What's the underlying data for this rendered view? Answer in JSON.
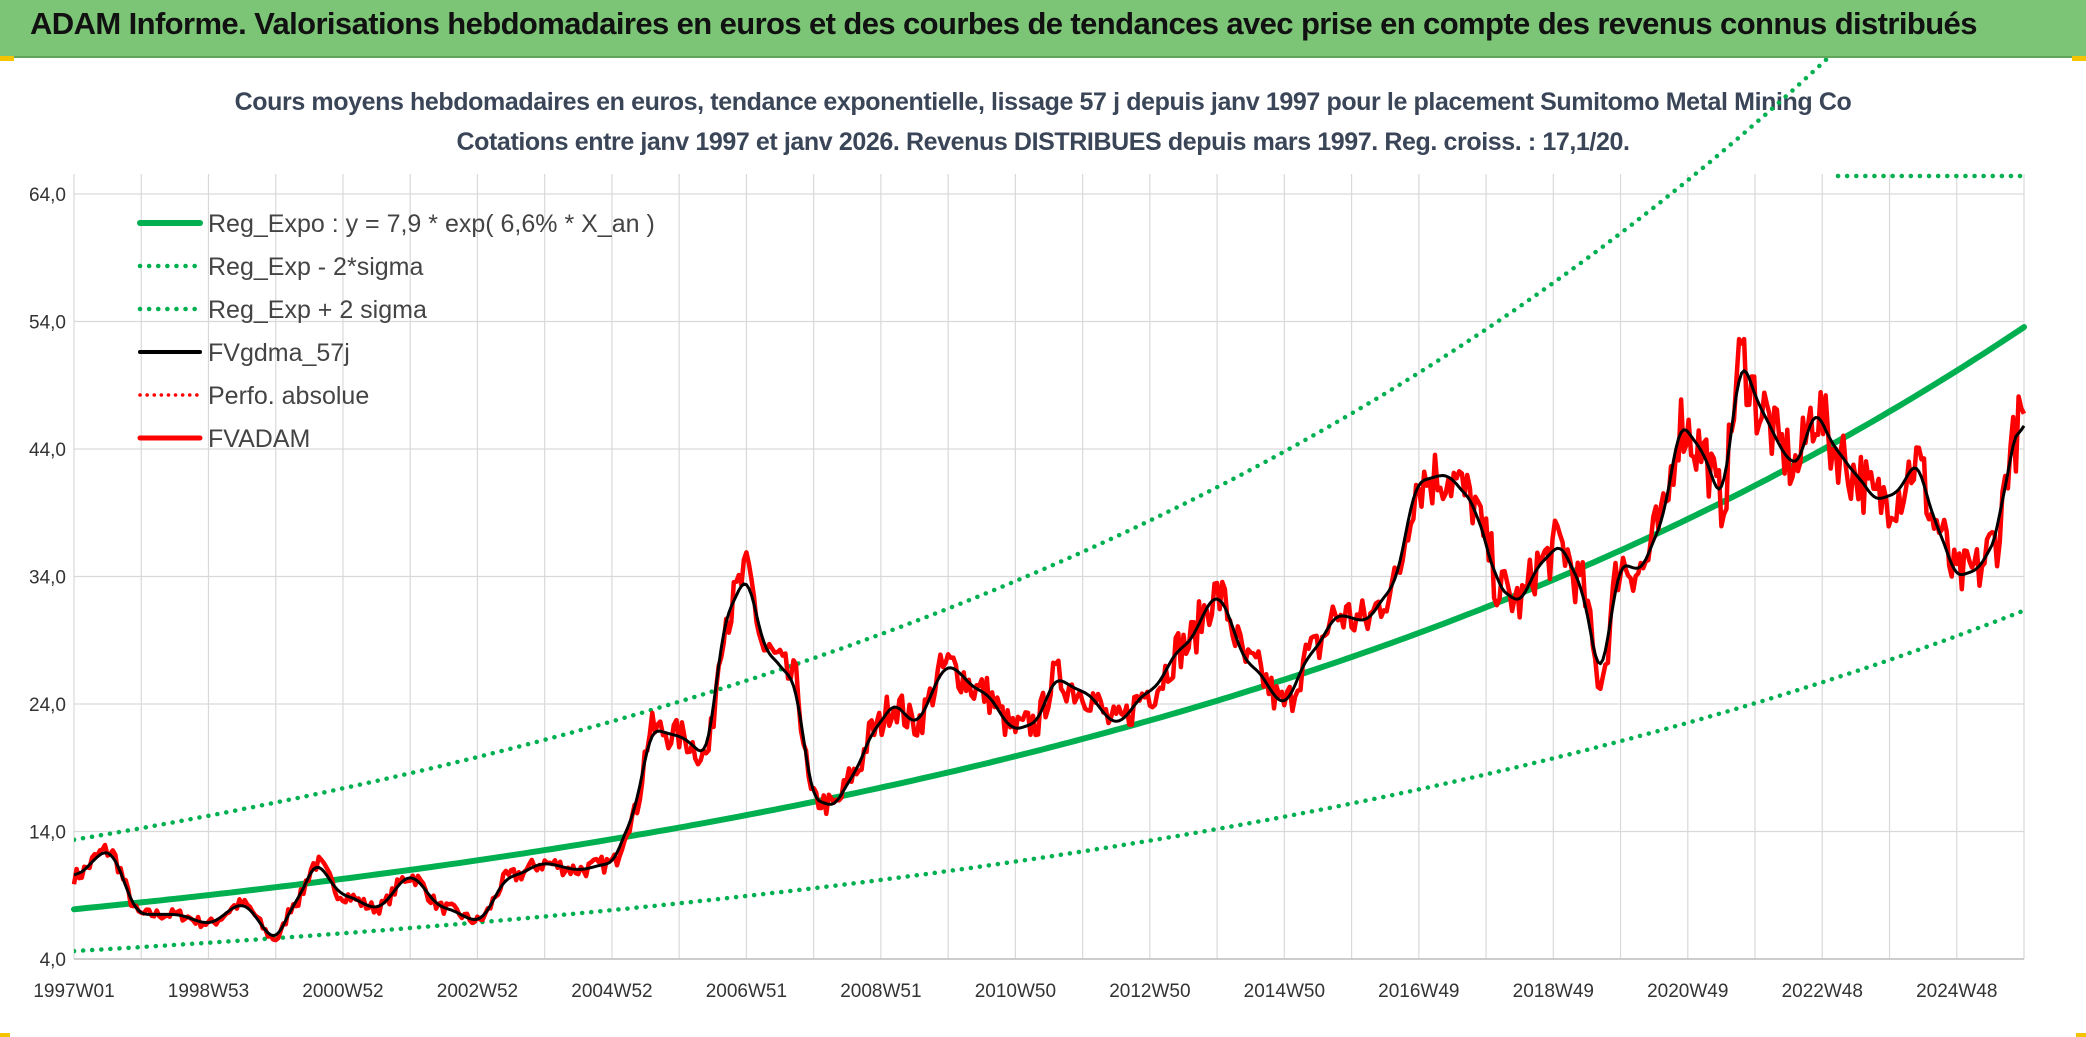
{
  "banner": {
    "title": "ADAM Informe. Valorisations hebdomadaires en euros et des courbes de tendances avec prise en compte des revenus connus distribués"
  },
  "colors": {
    "banner_bg": "#7cc576",
    "corner_accent": "#f5c400",
    "reg_expo": "#00b050",
    "fvgdma": "#000000",
    "fvadam": "#ff0000",
    "grid": "#d9d9d9"
  },
  "chart_data": {
    "type": "line",
    "title": "Cours moyens hebdomadaires en euros, tendance exponentielle, lissage 57 j depuis janv 1997 pour le placement Sumitomo Metal Mining Co",
    "subtitle": "Cotations entre janv 1997 et janv 2026. Revenus DISTRIBUES depuis mars 1997. Reg. croiss. : 17,1/20.",
    "ylim": [
      4,
      64
    ],
    "grid": true,
    "legend_position": "top-left",
    "yticks": [
      "64,0",
      "54,0",
      "44,0",
      "34,0",
      "24,0",
      "14,0",
      "4,0"
    ],
    "ytick_values": [
      64,
      54,
      44,
      34,
      24,
      14,
      4
    ],
    "xticks": [
      "1997W01",
      "1998W53",
      "2000W52",
      "2002W52",
      "2004W52",
      "2006W51",
      "2008W51",
      "2010W50",
      "2012W50",
      "2014W50",
      "2016W49",
      "2018W49",
      "2020W49",
      "2022W48",
      "2024W48"
    ],
    "xtick_years": [
      1997.0,
      1999.0,
      2001.0,
      2003.0,
      2005.0,
      2007.0,
      2009.0,
      2011.0,
      2013.0,
      2015.0,
      2017.0,
      2019.0,
      2021.0,
      2023.0,
      2025.0
    ],
    "x_range_years": [
      1997.0,
      2026.0
    ],
    "series": [
      {
        "name": "Reg_Expo : y = 7,9 * exp( 6,6% *  X_an )",
        "style": "solid-thick",
        "color": "#00b050",
        "a": 7.9,
        "rate": 0.066
      },
      {
        "name": "Reg_Exp - 2*sigma",
        "style": "dotted",
        "color": "#00b050",
        "factor": 0.585
      },
      {
        "name": "Reg_Exp + 2 sigma",
        "style": "dotted",
        "color": "#00b050",
        "factor": 1.69
      },
      {
        "name": "FVgdma_57j",
        "style": "solid",
        "color": "#000000"
      },
      {
        "name": "Perfo. absolue",
        "style": "dotted",
        "color": "#ff0000"
      },
      {
        "name": "FVADAM",
        "style": "solid-thick",
        "color": "#ff0000",
        "x": [
          1997.0,
          1997.5,
          1998.0,
          1998.5,
          1999.0,
          1999.5,
          2000.0,
          2000.3,
          2000.6,
          2001.0,
          2001.5,
          2002.0,
          2002.5,
          2003.0,
          2003.5,
          2004.0,
          2004.5,
          2005.0,
          2005.3,
          2005.6,
          2006.0,
          2006.4,
          2006.7,
          2007.0,
          2007.3,
          2007.7,
          2008.0,
          2008.3,
          2008.6,
          2008.9,
          2009.2,
          2009.5,
          2010.0,
          2010.5,
          2011.0,
          2011.3,
          2011.6,
          2012.0,
          2012.5,
          2013.0,
          2013.5,
          2014.0,
          2014.5,
          2015.0,
          2015.4,
          2015.8,
          2016.2,
          2016.6,
          2017.0,
          2017.4,
          2017.8,
          2018.0,
          2018.2,
          2018.5,
          2018.8,
          2019.1,
          2019.4,
          2019.7,
          2020.0,
          2020.3,
          2020.6,
          2020.9,
          2021.2,
          2021.5,
          2021.8,
          2022.1,
          2022.4,
          2022.6,
          2022.9,
          2023.2,
          2023.5,
          2023.8,
          2024.1,
          2024.4,
          2024.7,
          2025.0,
          2025.3,
          2025.6,
          2025.8,
          2026.0
        ],
        "y": [
          10.5,
          12.5,
          7.5,
          7.5,
          6.8,
          8.3,
          5.6,
          8.5,
          11.5,
          9.0,
          8.0,
          10.5,
          8.0,
          7.0,
          10.5,
          11.5,
          11.0,
          11.5,
          15.0,
          22.0,
          21.5,
          20.0,
          31.0,
          34.0,
          28.0,
          26.0,
          16.5,
          16.0,
          18.5,
          22.0,
          24.0,
          22.5,
          27.0,
          25.0,
          22.0,
          22.5,
          26.0,
          25.0,
          22.5,
          25.0,
          28.5,
          32.5,
          27.0,
          24.0,
          28.0,
          31.0,
          30.5,
          33.0,
          41.5,
          42.0,
          40.0,
          36.5,
          33.0,
          32.0,
          35.0,
          36.5,
          33.5,
          26.0,
          35.0,
          34.5,
          38.0,
          46.0,
          44.0,
          40.0,
          51.0,
          47.0,
          44.0,
          42.5,
          47.0,
          44.0,
          42.0,
          40.0,
          40.5,
          43.0,
          38.0,
          34.0,
          34.5,
          37.0,
          44.0,
          46.5
        ]
      }
    ]
  }
}
